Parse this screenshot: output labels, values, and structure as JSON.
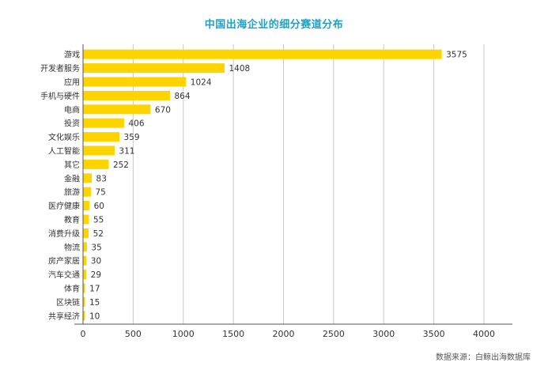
{
  "colors": {
    "bar": "#FDD400",
    "title": "#1aa3c8",
    "grid": "#c8c8c8",
    "axis": "#555555",
    "text": "#333333"
  },
  "chart_data": {
    "type": "bar",
    "orientation": "horizontal",
    "title": "中国出海企业的细分赛道分布",
    "source": "数据来源：白鲸出海数据库",
    "categories": [
      "游戏",
      "开发者服务",
      "应用",
      "手机与硬件",
      "电商",
      "投资",
      "文化娱乐",
      "人工智能",
      "其它",
      "金融",
      "旅游",
      "医疗健康",
      "教育",
      "消费升级",
      "物流",
      "房产家居",
      "汽车交通",
      "体育",
      "区块链",
      "共享经济"
    ],
    "values": [
      3575,
      1408,
      1024,
      864,
      670,
      406,
      359,
      311,
      252,
      83,
      75,
      60,
      55,
      52,
      35,
      30,
      29,
      17,
      15,
      10
    ],
    "xlim": [
      0,
      4000
    ],
    "xticks": [
      0,
      500,
      1000,
      1500,
      2000,
      2500,
      3000,
      3500,
      4000
    ],
    "grid": true,
    "legend": "none",
    "data_labels": true
  }
}
